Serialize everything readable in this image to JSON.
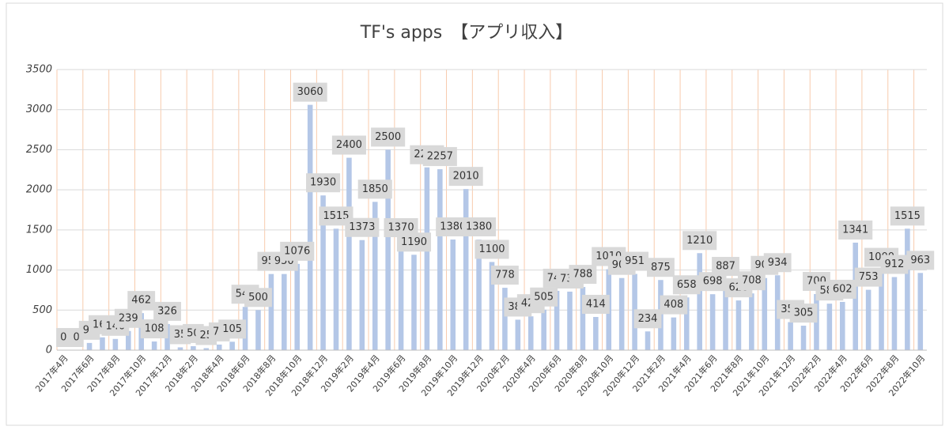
{
  "chart_data": {
    "type": "bar",
    "title": "TF's apps　【アプリ収入】",
    "categories": [
      "2017年4月",
      null,
      "2017年6月",
      null,
      "2017年8月",
      null,
      "2017年10月",
      null,
      "2017年12月",
      null,
      "2018年2月",
      null,
      "2018年4月",
      null,
      "2018年6月",
      null,
      "2018年8月",
      null,
      "2018年10月",
      null,
      "2018年12月",
      null,
      "2019年2月",
      null,
      "2019年4月",
      null,
      "2019年6月",
      null,
      "2019年8月",
      null,
      "2019年10月",
      null,
      "2019年12月",
      null,
      "2020年2月",
      null,
      "2020年4月",
      null,
      "2020年6月",
      null,
      "2020年8月",
      null,
      "2020年10月",
      null,
      "2020年12月",
      null,
      "2021年2月",
      null,
      "2021年4月",
      null,
      "2021年6月",
      null,
      "2021年8月",
      null,
      "2021年10月",
      null,
      "2021年12月",
      null,
      "2022年2月",
      null,
      "2022年4月",
      null,
      "2022年6月",
      null,
      "2022年8月",
      null,
      "2022年10月"
    ],
    "values": [
      0,
      0,
      90,
      160,
      140,
      239,
      462,
      108,
      326,
      35,
      50,
      25,
      70,
      105,
      540,
      500,
      950,
      950,
      1076,
      3060,
      1930,
      1515,
      2400,
      1373,
      1850,
      2500,
      1370,
      1190,
      2280,
      2257,
      1380,
      2010,
      1380,
      1100,
      778,
      380,
      422,
      505,
      740,
      730,
      788,
      414,
      1010,
      900,
      951,
      234,
      875,
      408,
      658,
      1210,
      698,
      887,
      620,
      708,
      900,
      934,
      350,
      305,
      700,
      580,
      602,
      1341,
      753,
      1000,
      912,
      1515,
      963
    ],
    "color": "#b4c7e7",
    "ylim": [
      0,
      3500
    ],
    "yticks": [
      0,
      500,
      1000,
      1500,
      2000,
      2500,
      3000,
      3500
    ],
    "grid": true
  }
}
